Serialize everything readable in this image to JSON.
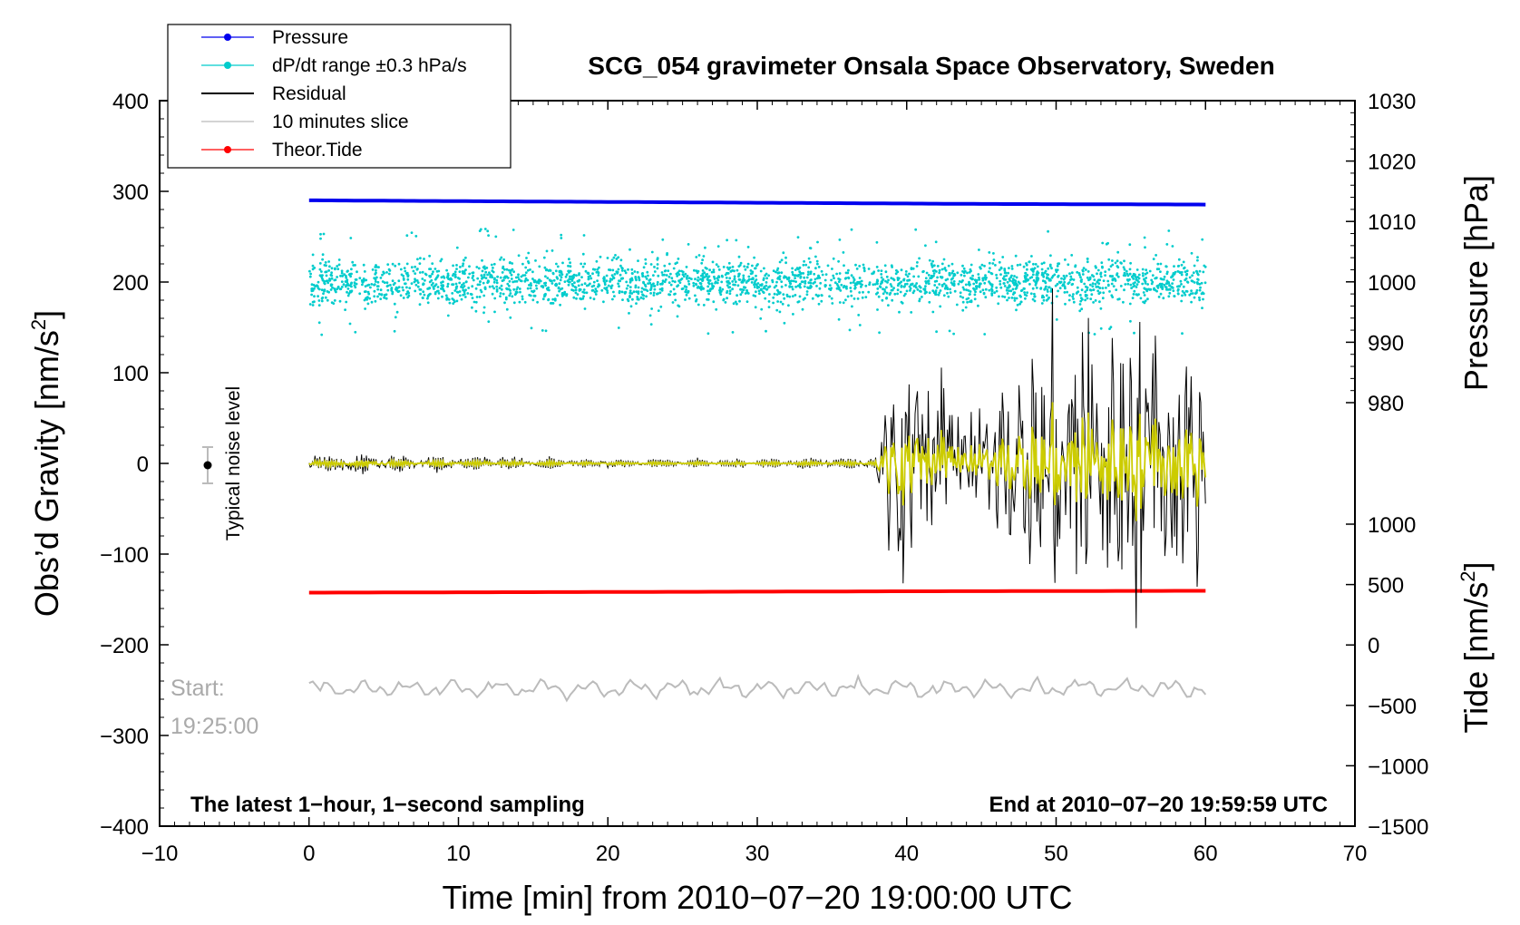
{
  "chart_data": {
    "type": "line",
    "title": "SCG_054 gravimeter Onsala Space Observatory, Sweden",
    "xlabel": "Time [min] from 2010−07−20 19:00:00 UTC",
    "ylabel_main": "Obs’d Gravity [nm/s",
    "ylabel_main_sup": "2",
    "ylabel_main_end": "]",
    "ylabel_pressure": "Pressure [hPa]",
    "ylabel_tide": "Tide [nm/s",
    "ylabel_tide_sup": "2",
    "ylabel_tide_end": "]",
    "xlim": [
      -10,
      70
    ],
    "ylim": [
      -400,
      400
    ],
    "x_ticks": [
      {
        "value": -10,
        "label": "−10"
      },
      {
        "value": 0,
        "label": "0"
      },
      {
        "value": 10,
        "label": "10"
      },
      {
        "value": 20,
        "label": "20"
      },
      {
        "value": 30,
        "label": "30"
      },
      {
        "value": 40,
        "label": "40"
      },
      {
        "value": 50,
        "label": "50"
      },
      {
        "value": 60,
        "label": "60"
      },
      {
        "value": 70,
        "label": "70"
      }
    ],
    "y_ticks": [
      {
        "value": 400,
        "label": "400"
      },
      {
        "value": 300,
        "label": "300"
      },
      {
        "value": 200,
        "label": "200"
      },
      {
        "value": 100,
        "label": "100"
      },
      {
        "value": 0,
        "label": "0"
      },
      {
        "value": -100,
        "label": "−100"
      },
      {
        "value": -200,
        "label": "−200"
      },
      {
        "value": -300,
        "label": "−300"
      },
      {
        "value": -400,
        "label": "−400"
      }
    ],
    "pressure_axis": {
      "range_hpa": [
        1030,
        980
      ],
      "range_main_units": [
        400,
        67
      ],
      "ticks": [
        {
          "value": 1030,
          "label": "1030"
        },
        {
          "value": 1020,
          "label": "1020"
        },
        {
          "value": 1010,
          "label": "1010"
        },
        {
          "value": 1000,
          "label": "1000"
        },
        {
          "value": 990,
          "label": "990"
        },
        {
          "value": 980,
          "label": "980"
        }
      ]
    },
    "tide_axis": {
      "range_nms2": [
        1000,
        -1500
      ],
      "range_main_units": [
        -67,
        -400
      ],
      "ticks": [
        {
          "value": 1000,
          "label": "1000"
        },
        {
          "value": 500,
          "label": "500"
        },
        {
          "value": 0,
          "label": "0"
        },
        {
          "value": -500,
          "label": "−500"
        },
        {
          "value": -1000,
          "label": "−1000"
        },
        {
          "value": -1500,
          "label": "−1500"
        }
      ]
    },
    "series": [
      {
        "name": "Pressure",
        "color": "#0000ee",
        "unit": "hPa",
        "x": [
          0,
          15,
          30,
          45,
          60
        ],
        "values": [
          1013.5,
          1013.3,
          1013.1,
          1012.9,
          1012.8
        ]
      },
      {
        "name": "dP/dt range ±0.3 hPa/s",
        "color": "#00cccc",
        "center": 200,
        "typical_spread": 12,
        "max_outlier": 70
      },
      {
        "name": "Residual",
        "color": "#000000",
        "x": [
          0,
          10,
          20,
          30,
          38,
          39,
          45,
          50,
          55,
          60
        ],
        "envelope": [
          12,
          10,
          6,
          5,
          10,
          105,
          55,
          160,
          160,
          140
        ],
        "peaks": {
          "max": 165,
          "min": -162
        }
      },
      {
        "name": "10 minutes slice",
        "color": "#bbbbbb",
        "center": -248,
        "amplitude": 12
      },
      {
        "name": "Theor.Tide",
        "color": "#ff0000",
        "unit": "nm/s^2",
        "x": [
          0,
          20,
          40,
          60
        ],
        "values": [
          -142.5,
          -141.8,
          -141.0,
          -140.5
        ]
      },
      {
        "name": "Residual (filtered)",
        "color": "#cccc00",
        "envelope": [
          4,
          3,
          2,
          2,
          35,
          30,
          60,
          65,
          60
        ]
      }
    ],
    "legend": [
      {
        "label": "Pressure",
        "color": "#0000ee",
        "marker": true
      },
      {
        "label": "dP/dt range ±0.3 hPa/s",
        "color": "#00cccc",
        "marker": true
      },
      {
        "label": "Residual",
        "color": "#000000",
        "marker": false
      },
      {
        "label": "10 minutes slice",
        "color": "#bbbbbb",
        "marker": false
      },
      {
        "label": "Theor.Tide",
        "color": "#ff0000",
        "marker": true
      }
    ],
    "noise_level": {
      "label": "Typical noise level",
      "x": -7,
      "y": 0,
      "err": 20
    },
    "annotations": {
      "start_label": "Start:",
      "start_time": "19:25:00",
      "bottom_left": "The latest 1−hour, 1−second sampling",
      "bottom_right": "End at 2010−07−20 19:59:59 UTC"
    }
  }
}
